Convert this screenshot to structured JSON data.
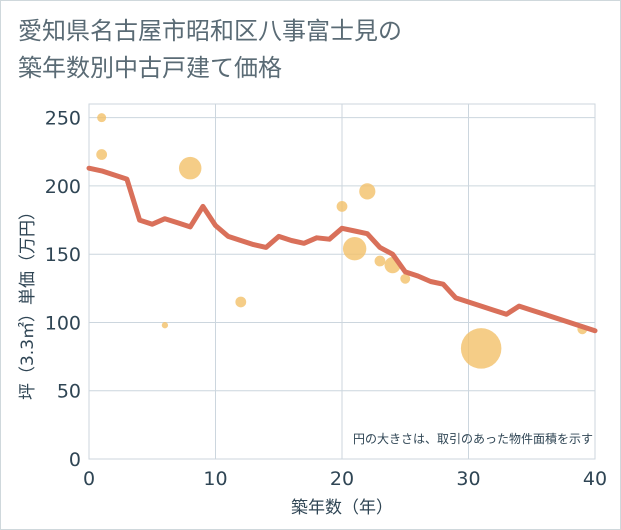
{
  "title": {
    "line1": "愛知県名古屋市昭和区八事富士見の",
    "line2": "築年数別中古戸建て価格"
  },
  "note": "円の大きさは、取引のあった物件面積を示す",
  "colors": {
    "line": "#d9705a",
    "bubble": "#f2c069",
    "grid": "#ccd6de",
    "text": "#2f4554"
  },
  "chart_data": {
    "type": "scatter",
    "xlabel": "築年数（年）",
    "ylabel": "坪（3.3㎡）単価（万円）",
    "xlim": [
      0,
      40
    ],
    "ylim": [
      0,
      260
    ],
    "xticks": [
      0,
      10,
      20,
      30,
      40
    ],
    "yticks": [
      0,
      50,
      100,
      150,
      200,
      250
    ],
    "grid": true,
    "bubbles": [
      {
        "x": 1,
        "y": 250,
        "size": 1.0
      },
      {
        "x": 1,
        "y": 223,
        "size": 1.2
      },
      {
        "x": 6,
        "y": 98,
        "size": 0.7
      },
      {
        "x": 8,
        "y": 213,
        "size": 2.5
      },
      {
        "x": 12,
        "y": 115,
        "size": 1.2
      },
      {
        "x": 20,
        "y": 185,
        "size": 1.2
      },
      {
        "x": 21,
        "y": 154,
        "size": 2.6
      },
      {
        "x": 22,
        "y": 196,
        "size": 1.8
      },
      {
        "x": 23,
        "y": 145,
        "size": 1.2
      },
      {
        "x": 24,
        "y": 142,
        "size": 1.8
      },
      {
        "x": 25,
        "y": 132,
        "size": 1.1
      },
      {
        "x": 31,
        "y": 81,
        "size": 4.5
      },
      {
        "x": 39,
        "y": 95,
        "size": 1.1
      }
    ],
    "line": {
      "x": [
        0,
        1,
        2,
        3,
        4,
        5,
        6,
        7,
        8,
        9,
        10,
        11,
        12,
        13,
        14,
        15,
        16,
        17,
        18,
        19,
        20,
        21,
        22,
        23,
        24,
        25,
        26,
        27,
        28,
        29,
        30,
        31,
        32,
        33,
        34,
        35,
        36,
        37,
        38,
        39,
        40
      ],
      "y": [
        213,
        211,
        208,
        205,
        175,
        172,
        176,
        173,
        170,
        185,
        171,
        163,
        160,
        157,
        155,
        163,
        160,
        158,
        162,
        161,
        169,
        167,
        165,
        155,
        150,
        137,
        134,
        130,
        128,
        118,
        115,
        112,
        109,
        106,
        112,
        109,
        106,
        103,
        100,
        97,
        94
      ]
    }
  }
}
